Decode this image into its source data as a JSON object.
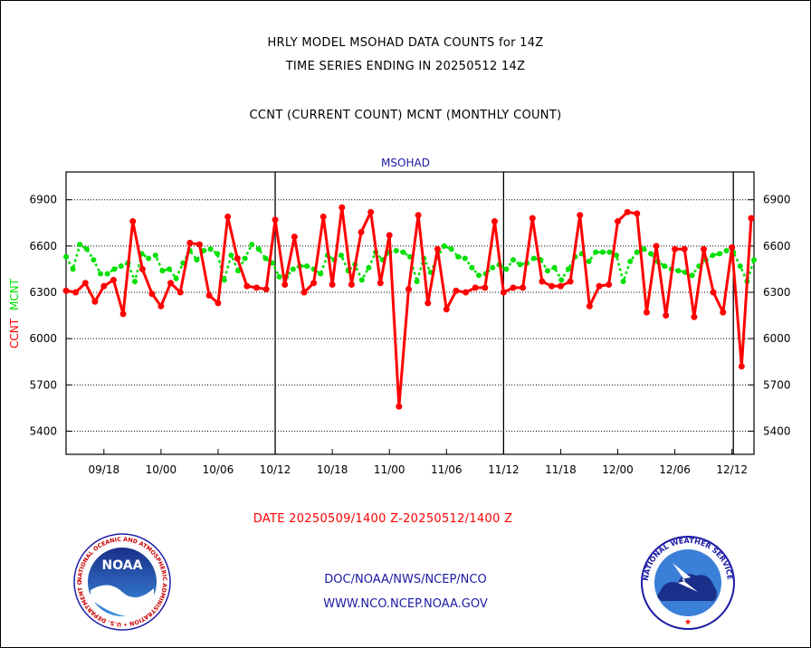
{
  "header": {
    "line1": "HRLY MODEL MSOHAD DATA COUNTS for 14Z",
    "line2": "TIME SERIES ENDING IN 20250512 14Z",
    "line3": "CCNT (CURRENT COUNT) MCNT (MONTHLY COUNT)"
  },
  "footer": {
    "date_range": "DATE 20250509/1400 Z-20250512/1400 Z",
    "org": "DOC/NOAA/NWS/NCEP/NCO",
    "url": "WWW.NCO.NCEP.NOAA.GOV"
  },
  "logos": {
    "noaa_text": "NOAA",
    "noaa_ring": "NATIONAL OCEANIC AND ATMOSPHERIC ADMINISTRATION • U.S. DEPARTMENT OF COMMERCE",
    "nws_ring": "NATIONAL WEATHER SERVICE"
  },
  "chart_data": {
    "type": "line",
    "title": "MSOHAD",
    "ylabels": [
      "CCNT",
      "MCNT"
    ],
    "ylim": [
      5250,
      7080
    ],
    "yticks": [
      5400,
      5700,
      6000,
      6300,
      6600,
      6900
    ],
    "xlim": [
      0,
      100
    ],
    "xtick_labels": [
      "09/18",
      "10/00",
      "10/06",
      "10/12",
      "10/18",
      "11/00",
      "11/06",
      "11/12",
      "11/18",
      "12/00",
      "12/06",
      "12/12"
    ],
    "xtick_positions": [
      5.5,
      13.8,
      22.1,
      30.4,
      38.7,
      47.0,
      55.3,
      63.6,
      71.9,
      80.2,
      88.5,
      96.8
    ],
    "day_boundaries": [
      30.4,
      63.6,
      97.0
    ],
    "grid": "horizontal dotted",
    "colors": {
      "ccnt": "#ff0000",
      "mcnt": "#00e000",
      "title": "#1a1aa6"
    },
    "series": [
      {
        "name": "CCNT",
        "x": [
          0,
          1.4,
          2.8,
          4.2,
          5.5,
          6.9,
          8.3,
          9.7,
          11.1,
          12.5,
          13.8,
          15.2,
          16.6,
          18,
          19.4,
          20.8,
          22.1,
          23.5,
          24.9,
          26.3,
          27.7,
          29.1,
          30.4,
          31.8,
          33.2,
          34.6,
          36,
          37.4,
          38.7,
          40.1,
          41.5,
          42.9,
          44.3,
          45.7,
          47,
          48.4,
          49.8,
          51.2,
          52.6,
          54,
          55.3,
          56.7,
          58.1,
          59.5,
          60.9,
          62.3,
          63.6,
          65,
          66.4,
          67.8,
          69.2,
          70.6,
          71.9,
          73.3,
          74.7,
          76.1,
          77.5,
          78.9,
          80.2,
          81.6,
          83,
          84.4,
          85.8,
          87.2,
          88.5,
          89.9,
          91.3,
          92.7,
          94.1,
          95.5,
          96.8,
          98.2,
          99.6
        ],
        "values": [
          6310,
          6300,
          6360,
          6240,
          6340,
          6380,
          6160,
          6760,
          6450,
          6290,
          6210,
          6360,
          6300,
          6620,
          6610,
          6280,
          6230,
          6790,
          6520,
          6340,
          6330,
          6320,
          6770,
          6350,
          6660,
          6300,
          6360,
          6790,
          6350,
          6850,
          6350,
          6690,
          6820,
          6360,
          6670,
          5560,
          6320,
          6800,
          6230,
          6580,
          6190,
          6310,
          6300,
          6330,
          6330,
          6760,
          6300,
          6330,
          6330,
          6780,
          6370,
          6340,
          6340,
          6370,
          6800,
          6210,
          6340,
          6350,
          6760,
          6820,
          6810,
          6170,
          6600,
          6150,
          6580,
          6580,
          6140,
          6580,
          6300,
          6170,
          6590,
          5820,
          6780
        ]
      },
      {
        "name": "MCNT",
        "x": [
          0,
          1,
          2,
          3,
          4,
          5,
          6,
          7,
          8,
          9,
          10,
          11,
          12,
          13,
          14,
          15,
          16,
          17,
          18,
          19,
          20,
          21,
          22,
          23,
          24,
          25,
          26,
          27,
          28,
          29,
          30,
          31,
          32,
          33,
          34,
          35,
          36,
          37,
          38,
          39,
          40,
          41,
          42,
          43,
          44,
          45,
          46,
          47,
          48,
          49,
          50,
          51,
          52,
          53,
          54,
          55,
          56,
          57,
          58,
          59,
          60,
          61,
          62,
          63,
          64,
          65,
          66,
          67,
          68,
          69,
          70,
          71,
          72,
          73,
          74,
          75,
          76,
          77,
          78,
          79,
          80,
          81,
          82,
          83,
          84,
          85,
          86,
          87,
          88,
          89,
          90,
          91,
          92,
          93,
          94,
          95,
          96,
          97,
          98,
          99,
          100
        ],
        "values": [
          6530,
          6450,
          6610,
          6580,
          6510,
          6420,
          6420,
          6450,
          6470,
          6490,
          6370,
          6550,
          6520,
          6540,
          6440,
          6450,
          6390,
          6490,
          6570,
          6510,
          6570,
          6580,
          6550,
          6380,
          6540,
          6440,
          6520,
          6610,
          6580,
          6520,
          6490,
          6400,
          6400,
          6450,
          6470,
          6470,
          6450,
          6420,
          6540,
          6510,
          6540,
          6440,
          6480,
          6380,
          6460,
          6560,
          6510,
          6560,
          6570,
          6560,
          6530,
          6370,
          6520,
          6430,
          6530,
          6600,
          6580,
          6530,
          6520,
          6460,
          6410,
          6420,
          6460,
          6480,
          6450,
          6510,
          6480,
          6490,
          6520,
          6510,
          6440,
          6460,
          6380,
          6450,
          6530,
          6550,
          6500,
          6560,
          6560,
          6560,
          6540,
          6370,
          6500,
          6560,
          6580,
          6550,
          6500,
          6470,
          6450,
          6440,
          6430,
          6410,
          6470,
          6510,
          6540,
          6550,
          6570,
          6560,
          6470,
          6370,
          6510
        ]
      }
    ]
  }
}
